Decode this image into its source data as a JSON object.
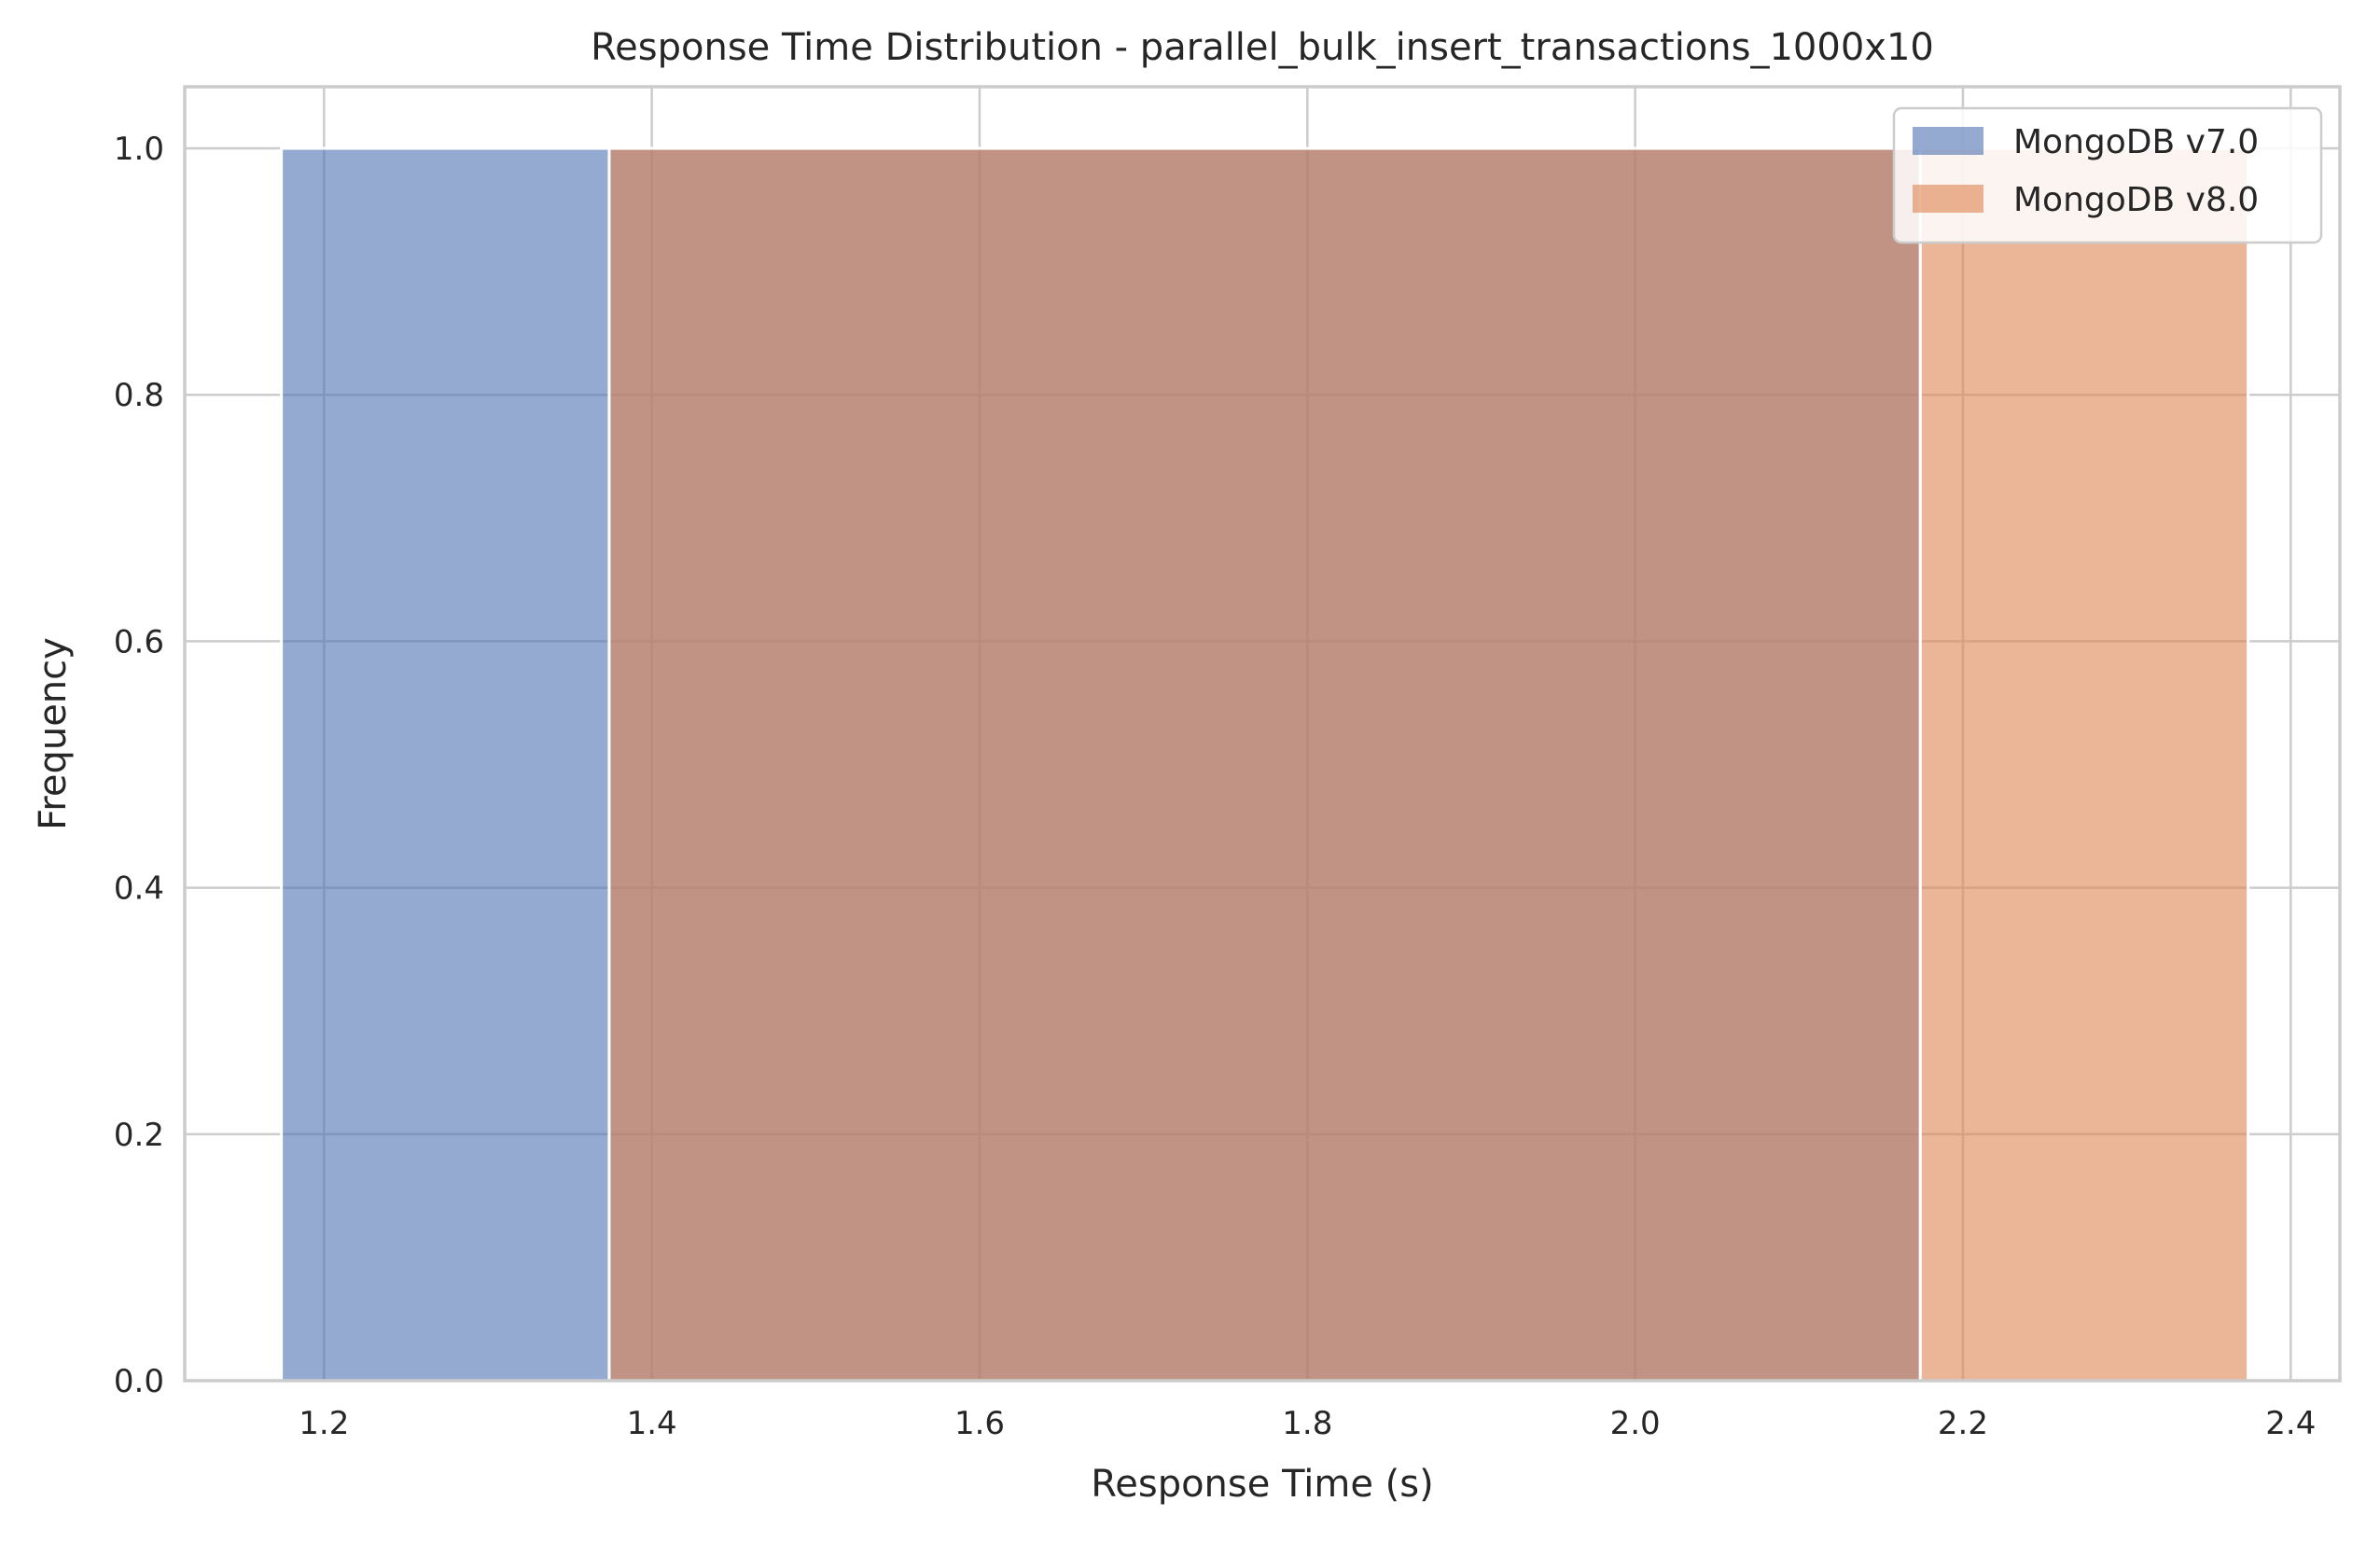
{
  "chart_data": {
    "type": "bar",
    "title": "Response Time Distribution - parallel_bulk_insert_transactions_1000x10",
    "xlabel": "Response Time (s)",
    "ylabel": "Frequency",
    "xlim": [
      1.115,
      2.43
    ],
    "ylim": [
      0,
      1.05
    ],
    "xticks": [
      "1.2",
      "1.4",
      "1.6",
      "1.8",
      "2.0",
      "2.2",
      "2.4"
    ],
    "xtick_values": [
      1.2,
      1.4,
      1.6,
      1.8,
      2.0,
      2.2,
      2.4
    ],
    "yticks": [
      "0.0",
      "0.2",
      "0.4",
      "0.6",
      "0.8",
      "1.0"
    ],
    "ytick_values": [
      0.0,
      0.2,
      0.4,
      0.6,
      0.8,
      1.0
    ],
    "grid": true,
    "legend_position": "top-right",
    "series": [
      {
        "name": "MongoDB v7.0",
        "color": "#4c72b0",
        "bins": [
          {
            "x0": 1.174,
            "x1": 1.374,
            "count": 1
          },
          {
            "x0": 1.374,
            "x1": 2.174,
            "count": 1
          }
        ]
      },
      {
        "name": "MongoDB v8.0",
        "color": "#dd8452",
        "bins": [
          {
            "x0": 1.374,
            "x1": 2.174,
            "count": 1
          },
          {
            "x0": 2.174,
            "x1": 2.374,
            "count": 1
          }
        ]
      }
    ]
  }
}
